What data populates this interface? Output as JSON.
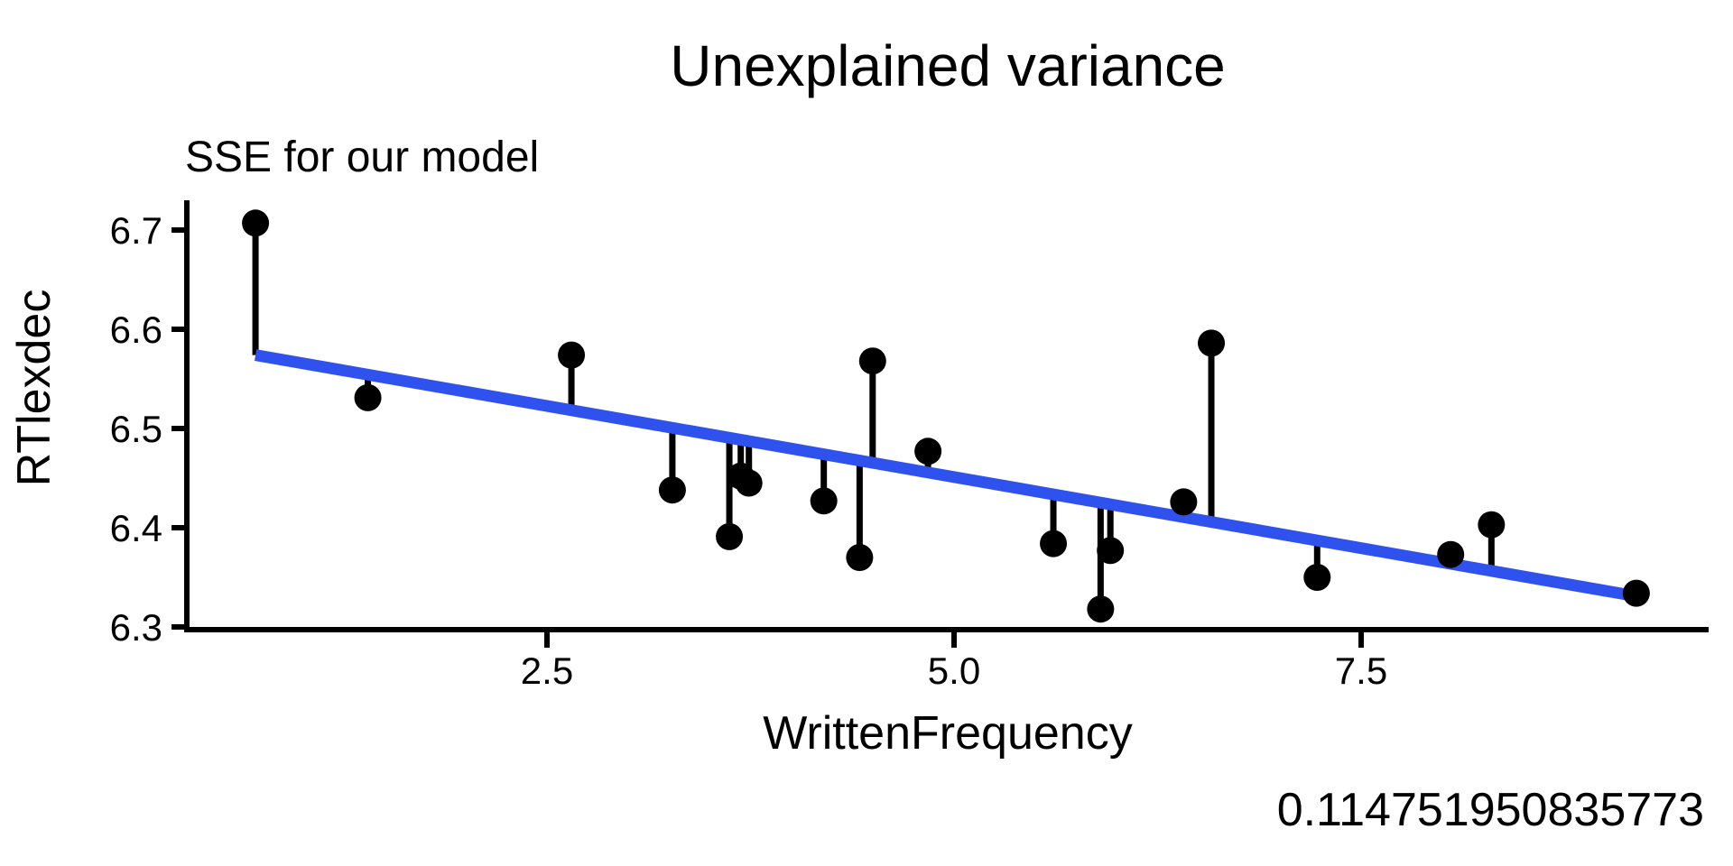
{
  "title": "Unexplained variance",
  "subtitle": "SSE for our model",
  "caption": "0.114751950835773",
  "axes": {
    "x_label": "WrittenFrequency",
    "y_label": "RTlexdec"
  },
  "chart_data": {
    "type": "scatter",
    "title": "Unexplained variance",
    "subtitle": "SSE for our model",
    "xlabel": "WrittenFrequency",
    "ylabel": "RTlexdec",
    "x_tick_labels": [
      "2.5",
      "5.0",
      "7.5"
    ],
    "x_tick_values": [
      2.5,
      5.0,
      7.5
    ],
    "y_tick_labels": [
      "6.3",
      "6.4",
      "6.5",
      "6.6",
      "6.7"
    ],
    "y_tick_values": [
      6.3,
      6.4,
      6.5,
      6.6,
      6.7
    ],
    "xlim": [
      0.29,
      9.63
    ],
    "ylim": [
      6.297,
      6.73
    ],
    "grid": false,
    "legend": false,
    "series_name": "observed points with residual segments to fitted line",
    "points": [
      [
        0.71,
        6.707
      ],
      [
        1.4,
        6.531
      ],
      [
        2.65,
        6.574
      ],
      [
        3.27,
        6.438
      ],
      [
        3.62,
        6.391
      ],
      [
        3.69,
        6.452
      ],
      [
        3.74,
        6.445
      ],
      [
        4.2,
        6.427
      ],
      [
        4.42,
        6.37
      ],
      [
        4.5,
        6.568
      ],
      [
        4.84,
        6.477
      ],
      [
        5.61,
        6.384
      ],
      [
        5.9,
        6.318
      ],
      [
        5.96,
        6.377
      ],
      [
        6.41,
        6.426
      ],
      [
        6.58,
        6.586
      ],
      [
        7.23,
        6.35
      ],
      [
        8.05,
        6.373
      ],
      [
        8.3,
        6.403
      ],
      [
        9.19,
        6.334
      ]
    ],
    "regression_line": {
      "x1": 0.71,
      "y1": 6.574,
      "x2": 9.19,
      "y2": 6.331
    },
    "residuals_shown": true,
    "sse": "0.114751950835773",
    "colors": {
      "points": "#000000",
      "residuals": "#000000",
      "line": "#2f52ef",
      "axis": "#000000",
      "text": "#000000",
      "background": "#ffffff"
    }
  }
}
